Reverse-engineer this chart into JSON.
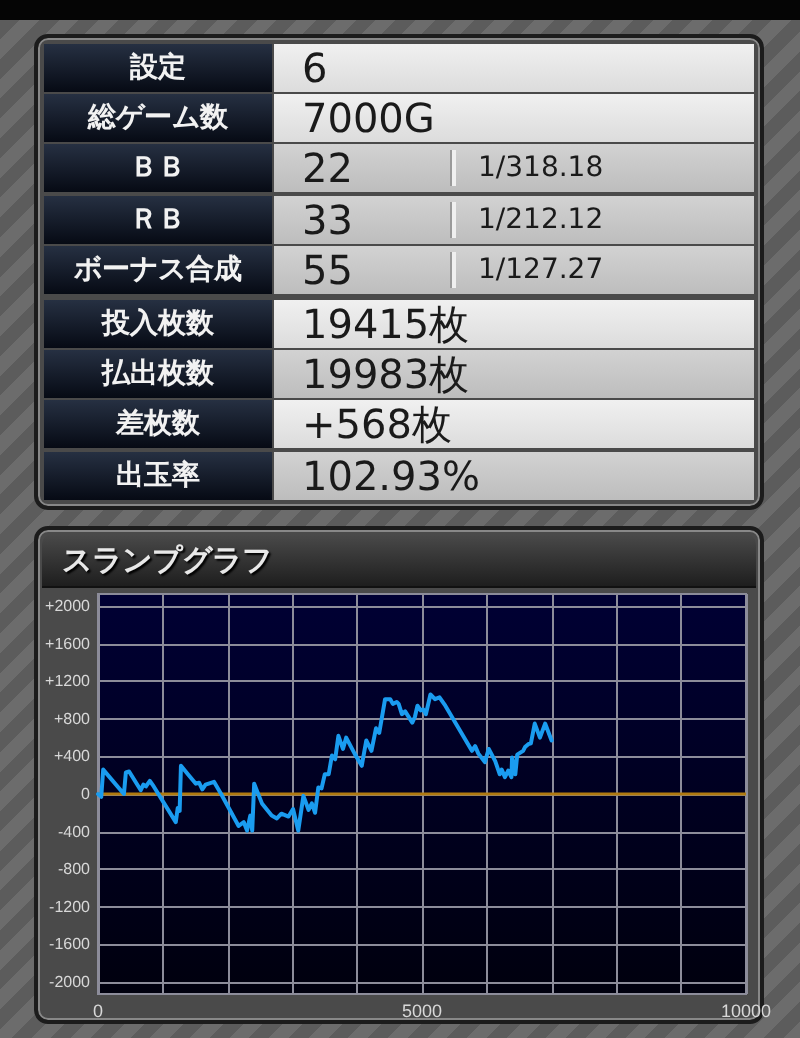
{
  "chart_data": [
    {
      "type": "other",
      "categories": [
        "設定",
        "総ゲーム数",
        "ＢＢ",
        "ＲＢ",
        "ボーナス合成",
        "投入枚数",
        "払出枚数",
        "差枚数",
        "出玉率"
      ],
      "series": [
        {
          "values": [
            null,
            null,
            null,
            null,
            null,
            null,
            null,
            null,
            null
          ],
          "value_labels": [
            "6",
            "7000G",
            "22",
            "33",
            "55",
            "19415枚",
            "19983枚",
            "+568枚",
            "102.93%"
          ]
        },
        {
          "values": [
            null,
            null,
            null,
            null,
            null,
            null,
            null,
            null,
            null
          ],
          "value_labels": [
            null,
            null,
            "1/318.18",
            "1/212.12",
            "1/127.27",
            null,
            null,
            null,
            null
          ]
        }
      ]
    },
    {
      "type": "line",
      "title": "スランプグラフ",
      "color": "#1a9cf0",
      "x": [
        0,
        50,
        80,
        400,
        430,
        480,
        660,
        700,
        740,
        800,
        860,
        1200,
        1230,
        1260,
        1280,
        1400,
        1510,
        1560,
        1610,
        1660,
        1790,
        1900,
        2170,
        2250,
        2300,
        2350,
        2380,
        2410,
        2530,
        2680,
        2760,
        2830,
        2940,
        3010,
        3090,
        3170,
        3250,
        3300,
        3350,
        3400,
        3450,
        3500,
        3560,
        3610,
        3660,
        3710,
        3780,
        3830,
        3960,
        4070,
        4140,
        4220,
        4290,
        4340,
        4430,
        4510,
        4550,
        4610,
        4640,
        4690,
        4740,
        4850,
        4890,
        4930,
        4980,
        5020,
        5060,
        5130,
        5200,
        5270,
        5360,
        5770,
        5820,
        5870,
        5970,
        6030,
        6130,
        6200,
        6230,
        6280,
        6330,
        6380,
        6390,
        6440,
        6470,
        6560,
        6590,
        6640,
        6680,
        6740,
        6820,
        6900,
        7000
      ],
      "values": [
        0,
        -30,
        260,
        0,
        230,
        240,
        40,
        100,
        80,
        140,
        80,
        -300,
        -150,
        -180,
        300,
        200,
        110,
        120,
        50,
        100,
        130,
        0,
        -340,
        -300,
        -390,
        -230,
        -390,
        110,
        -100,
        -230,
        -260,
        -210,
        -240,
        -160,
        -390,
        -20,
        -170,
        -100,
        -200,
        70,
        60,
        210,
        210,
        410,
        370,
        620,
        480,
        600,
        430,
        300,
        570,
        460,
        700,
        650,
        1010,
        1010,
        960,
        980,
        960,
        850,
        880,
        760,
        820,
        940,
        890,
        900,
        850,
        1060,
        1010,
        1030,
        940,
        460,
        510,
        430,
        340,
        480,
        350,
        210,
        260,
        180,
        250,
        180,
        390,
        210,
        420,
        460,
        500,
        530,
        540,
        750,
        600,
        750,
        570
      ],
      "xlim": [
        0,
        10000
      ],
      "xticks": [
        0,
        {
          "value": 1000,
          "label": null
        },
        {
          "value": 2000,
          "label": null
        },
        {
          "value": 3000,
          "label": null
        },
        {
          "value": 4000,
          "label": null
        },
        5000,
        {
          "value": 6000,
          "label": null
        },
        {
          "value": 7000,
          "label": null
        },
        {
          "value": 8000,
          "label": null
        },
        {
          "value": 9000,
          "label": null
        },
        10000
      ],
      "ylim": [
        -2130,
        2130
      ],
      "yticks": [
        -2000,
        -1600,
        -1200,
        -800,
        -400,
        0,
        {
          "value": 400,
          "label": "+400"
        },
        {
          "value": 800,
          "label": "+800"
        },
        {
          "value": 1200,
          "label": "+1200"
        },
        {
          "value": 1600,
          "label": "+1600"
        },
        {
          "value": 2000,
          "label": "+2000"
        }
      ],
      "grid": true,
      "ref_lines": [
        {
          "axis": "y",
          "value": 0,
          "color": "#b07a10"
        }
      ]
    }
  ]
}
